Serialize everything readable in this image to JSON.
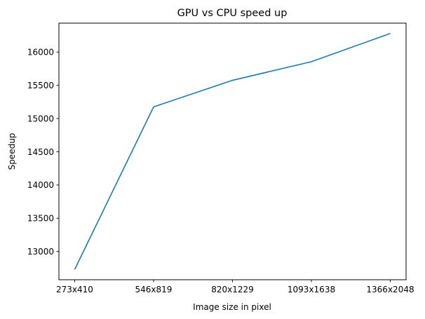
{
  "chart_data": {
    "type": "line",
    "title": "GPU vs CPU speed up",
    "xlabel": "Image size in pixel",
    "ylabel": "Speedup",
    "categories": [
      "273x410",
      "546x819",
      "820x1229",
      "1093x1638",
      "1366x2048"
    ],
    "series": [
      {
        "values": [
          12730,
          15175,
          15575,
          15855,
          16280
        ]
      }
    ],
    "ylim": [
      12575,
      16435
    ],
    "yticks": [
      13000,
      13500,
      14000,
      14500,
      15000,
      15500,
      16000
    ],
    "ytick_labels": [
      "13000",
      "13500",
      "14000",
      "14500",
      "15000",
      "15500",
      "16000"
    ],
    "grid": false,
    "colors": {
      "line": "#1f77b4",
      "axes": "#000000",
      "background": "#ffffff"
    }
  }
}
